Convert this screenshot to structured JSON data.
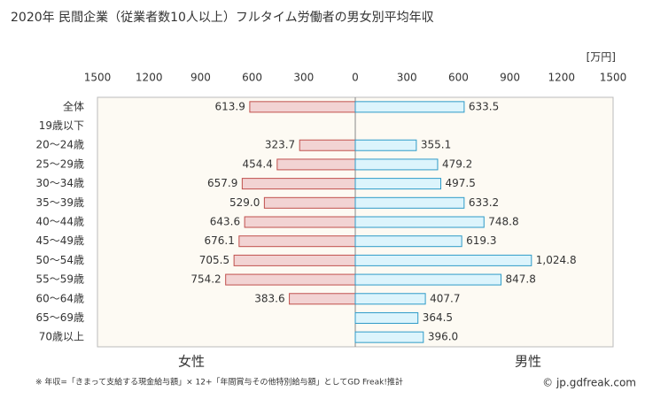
{
  "chart_data": {
    "type": "butterfly-bar",
    "title": "2020年 民間企業（従業者数10人以上）フルタイム労働者の男女別平均年収",
    "unit": "[万円]",
    "footnote": "※ 年収=「きまって支給する現金給与額」× 12+「年間賞与その他特別給与額」としてGD Freak!推計",
    "source": "© jp.gdfreak.com",
    "categories": [
      "全体",
      "19歳以下",
      "20～24歳",
      "25～29歳",
      "30～34歳",
      "35～39歳",
      "40～44歳",
      "45～49歳",
      "50～54歳",
      "55～59歳",
      "60～64歳",
      "65～69歳",
      "70歳以上"
    ],
    "xlim": [
      -1500,
      1500
    ],
    "xticks": [
      {
        "value": -1500,
        "label": "1500"
      },
      {
        "value": -1200,
        "label": "1200"
      },
      {
        "value": -900,
        "label": "900"
      },
      {
        "value": -600,
        "label": "600"
      },
      {
        "value": -300,
        "label": "300"
      },
      0,
      300,
      600,
      900,
      1200,
      1500
    ],
    "series": [
      {
        "name": "女性",
        "side": "left",
        "color": "#f2d3d3",
        "edge": "#c0504d",
        "legend_color": "#c0504d",
        "values": [
          613.9,
          null,
          323.7,
          454.4,
          657.9,
          529.0,
          643.6,
          676.1,
          705.5,
          754.2,
          383.6,
          null,
          null
        ],
        "value_labels": [
          "613.9",
          null,
          "323.7",
          "454.4",
          "657.9",
          "529.0",
          "643.6",
          "676.1",
          "705.5",
          "754.2",
          "383.6",
          null,
          null
        ]
      },
      {
        "name": "男性",
        "side": "right",
        "color": "#dcf4fc",
        "edge": "#2e9bc8",
        "legend_color": "#3a8fbf",
        "values": [
          633.5,
          null,
          355.1,
          479.2,
          497.5,
          633.2,
          748.8,
          619.3,
          1024.8,
          847.8,
          407.7,
          364.5,
          396.0
        ],
        "value_labels": [
          "633.5",
          null,
          "355.1",
          "479.2",
          "497.5",
          "633.2",
          "748.8",
          "619.3",
          "1,024.8",
          "847.8",
          "407.7",
          "364.5",
          "396.0"
        ]
      }
    ]
  }
}
